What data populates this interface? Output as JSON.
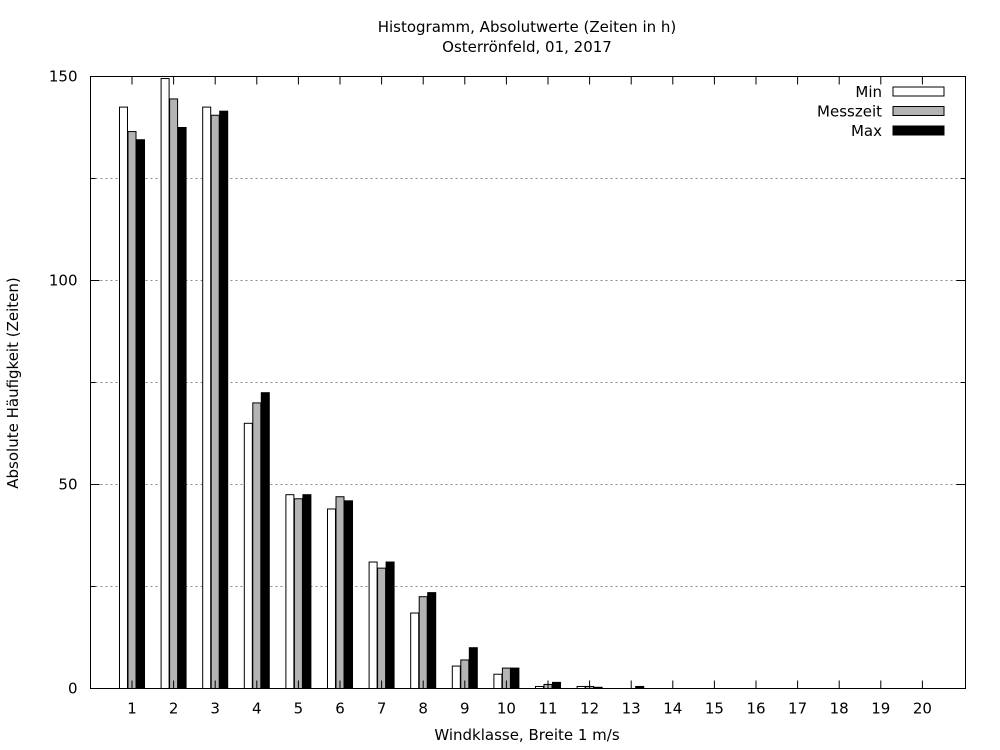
{
  "chart_data": {
    "type": "bar",
    "title": "Histogramm, Absolutwerte (Zeiten in h)",
    "subtitle": "Osterrönfeld, 01, 2017",
    "xlabel": "Windklasse, Breite 1 m/s",
    "ylabel": "Absolute Häufigkeit (Zeiten)",
    "ylim": [
      0,
      150
    ],
    "yticks": [
      0,
      50,
      100,
      150
    ],
    "grid": "dotted horizontal at 25-unit steps",
    "legend_position": "top-right",
    "categories": [
      "1",
      "2",
      "3",
      "4",
      "5",
      "6",
      "7",
      "8",
      "9",
      "10",
      "11",
      "12",
      "13",
      "14",
      "15",
      "16",
      "17",
      "18",
      "19",
      "20"
    ],
    "series": [
      {
        "name": "Min",
        "color": "#ffffff",
        "values": [
          142.5,
          149.5,
          142.5,
          65,
          47.5,
          44,
          31,
          18.5,
          5.5,
          3.5,
          0.5,
          0.5,
          0,
          0,
          0,
          0,
          0,
          0,
          0,
          0
        ]
      },
      {
        "name": "Messzeit",
        "color": "#b4b4b4",
        "values": [
          136.5,
          144.5,
          140.5,
          70,
          46.5,
          47,
          29.5,
          22.5,
          7,
          5,
          1,
          0.5,
          0,
          0,
          0,
          0,
          0,
          0,
          0,
          0
        ]
      },
      {
        "name": "Max",
        "color": "#000000",
        "values": [
          134.5,
          137.5,
          141.5,
          72.5,
          47.5,
          46,
          31,
          23.5,
          10,
          5,
          1.5,
          0.3,
          0.5,
          0,
          0,
          0,
          0,
          0,
          0,
          0
        ]
      }
    ]
  }
}
